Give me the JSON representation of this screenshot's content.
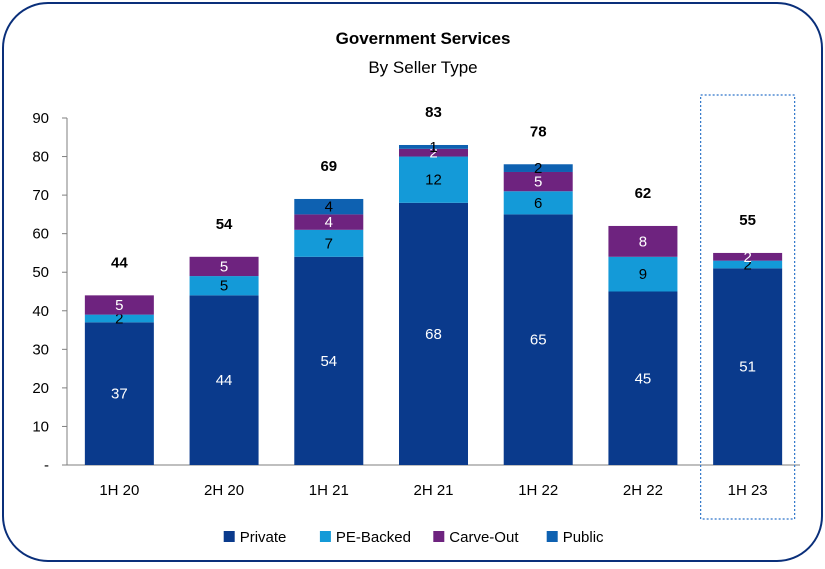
{
  "chart_data": {
    "type": "bar",
    "stacked": true,
    "title": "Government Services",
    "subtitle": "By Seller Type",
    "categories": [
      "1H 20",
      "2H 20",
      "1H 21",
      "2H 21",
      "1H 22",
      "2H 22",
      "1H 23"
    ],
    "series": [
      {
        "name": "Private",
        "values": [
          37,
          44,
          54,
          68,
          65,
          45,
          51
        ],
        "labels": [
          "37",
          "44",
          "54",
          "68",
          "65",
          "45",
          "51"
        ],
        "color": "#0a3a8c",
        "label_color": "#ffffff"
      },
      {
        "name": "PE-Backed",
        "values": [
          2,
          5,
          7,
          12,
          6,
          9,
          2
        ],
        "labels": [
          "2",
          "5",
          "7",
          "12",
          "6",
          "9",
          "2"
        ],
        "color": "#149ad8",
        "label_color": "#000000"
      },
      {
        "name": "Carve-Out",
        "values": [
          5,
          5,
          4,
          2,
          5,
          8,
          2
        ],
        "labels": [
          "5",
          "5",
          "4",
          "2",
          "5",
          "8",
          "2"
        ],
        "color": "#6e237f",
        "label_color": "#ffffff"
      },
      {
        "name": "Public",
        "values": [
          0,
          0,
          4,
          1,
          2,
          0,
          0
        ],
        "labels": [
          "",
          "",
          "4",
          "1",
          "2",
          "",
          ""
        ],
        "color": "#0e61b1",
        "label_color": "#000000"
      }
    ],
    "totals": [
      "44",
      "54",
      "69",
      "83",
      "78",
      "62",
      "55"
    ],
    "y_ticks": [
      "-",
      "10",
      "20",
      "30",
      "40",
      "50",
      "60",
      "70",
      "80",
      "90"
    ],
    "ylim": [
      0,
      90
    ],
    "legend_position": "bottom",
    "highlighted_category": "1H 23",
    "frame_color": "#0a2f7a"
  }
}
